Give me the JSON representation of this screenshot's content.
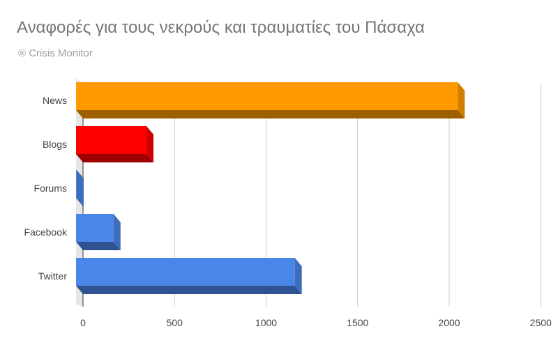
{
  "header": {
    "title": "Αναφορές για τους νεκρούς και τραυματίες του Πάσαχα",
    "subtitle": "® Crisis Monitor"
  },
  "chart_data": {
    "type": "bar",
    "orientation": "horizontal",
    "style": "3d",
    "title": "Αναφορές για τους νεκρούς και τραυματίες του Πάσαχα",
    "subtitle": "® Crisis Monitor",
    "categories": [
      "News",
      "Blogs",
      "Forums",
      "Facebook",
      "Twitter"
    ],
    "values": [
      2085,
      385,
      3,
      205,
      1195
    ],
    "colors": [
      "#ff9900",
      "#ff0000",
      "#4a86e8",
      "#4a86e8",
      "#4a86e8"
    ],
    "xlim": [
      0,
      2500
    ],
    "xticks": [
      0,
      500,
      1000,
      1500,
      2000,
      2500
    ],
    "grid": true,
    "legend": "none"
  }
}
